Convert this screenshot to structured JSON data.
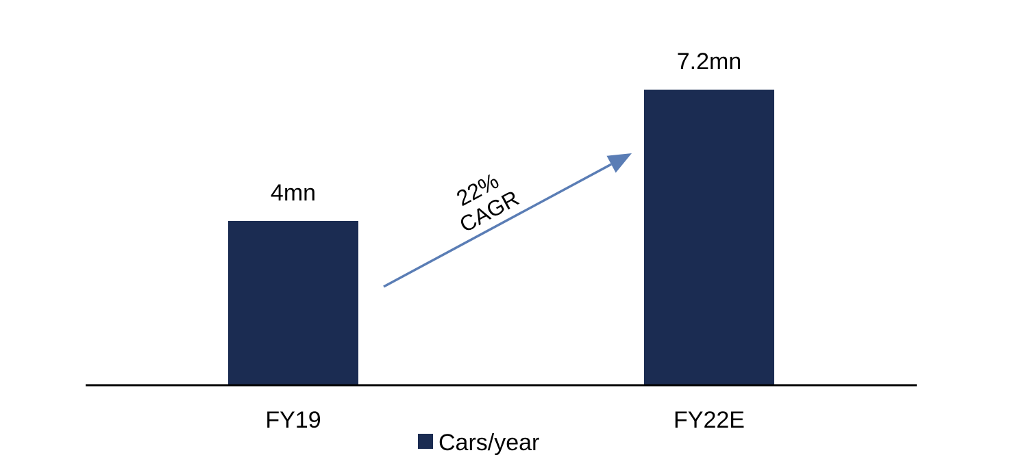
{
  "chart_data": {
    "type": "bar",
    "categories": [
      "FY19",
      "FY22E"
    ],
    "series": [
      {
        "name": "Cars/year",
        "values": [
          4,
          7.2
        ],
        "color": "#1b2c52"
      }
    ],
    "data_labels": [
      "4mn",
      "7.2mn"
    ],
    "unit": "mn",
    "ylim": [
      0,
      8
    ],
    "grid": false,
    "legend": {
      "position": "bottom-center",
      "entries": [
        "Cars/year"
      ]
    },
    "annotation": {
      "type": "arrow",
      "from_category": "FY19",
      "to_category": "FY22E",
      "lines": [
        "22%",
        "CAGR"
      ],
      "color": "#5a7db5"
    },
    "axis_color": "#000000"
  }
}
